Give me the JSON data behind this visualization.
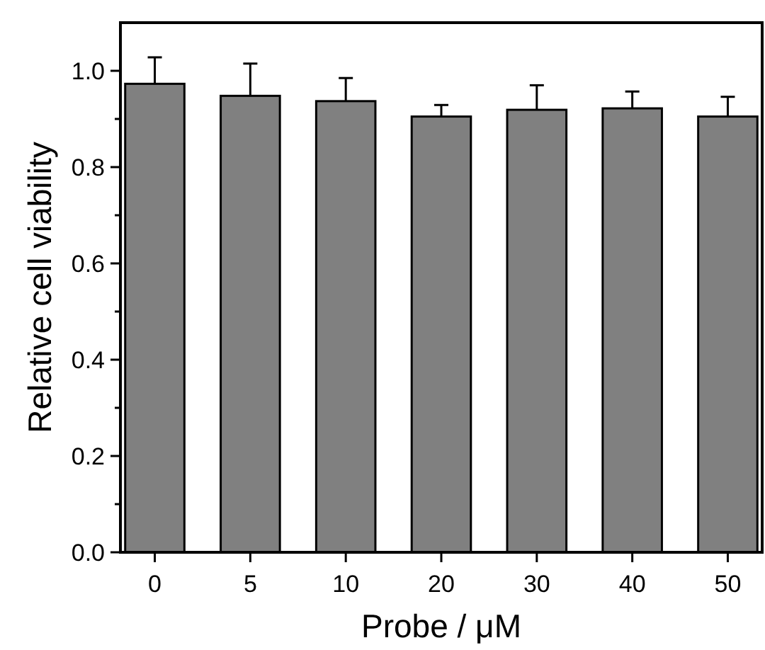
{
  "chart_data": {
    "type": "bar",
    "xlabel": "Probe / μM",
    "ylabel": "Relative cell viability",
    "categories": [
      "0",
      "5",
      "10",
      "20",
      "30",
      "40",
      "50"
    ],
    "values": [
      0.973,
      0.948,
      0.937,
      0.905,
      0.919,
      0.922,
      0.905
    ],
    "errors": [
      [
        0.973,
        1.028
      ],
      [
        0.948,
        1.015
      ],
      [
        0.937,
        0.985
      ],
      [
        0.905,
        0.929
      ],
      [
        0.919,
        0.97
      ],
      [
        0.922,
        0.957
      ],
      [
        0.905,
        0.946
      ]
    ],
    "color": "#808080",
    "ylim": [
      0,
      1.1
    ],
    "yticks": [
      {
        "value": 0,
        "label": "0.0"
      },
      {
        "value": 0.1,
        "label": null
      },
      {
        "value": 0.2,
        "label": "0.2"
      },
      {
        "value": 0.3,
        "label": null
      },
      {
        "value": 0.4,
        "label": "0.4"
      },
      {
        "value": 0.5,
        "label": null
      },
      {
        "value": 0.6,
        "label": "0.6"
      },
      {
        "value": 0.7,
        "label": null
      },
      {
        "value": 0.8,
        "label": "0.8"
      },
      {
        "value": 0.9,
        "label": null
      },
      {
        "value": 1,
        "label": "1.0"
      }
    ],
    "grid": false
  }
}
